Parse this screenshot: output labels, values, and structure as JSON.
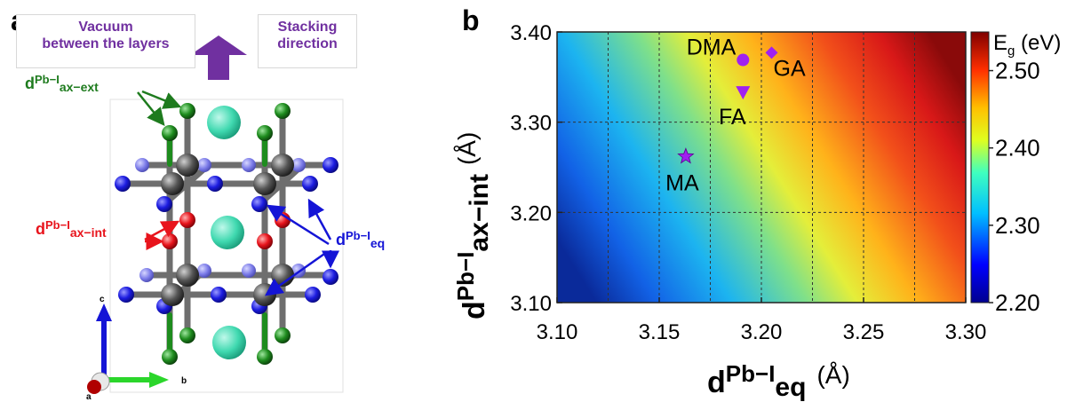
{
  "panel_a": {
    "label": "a",
    "note_vacuum": [
      "Vacuum",
      "between the layers"
    ],
    "note_stacking": [
      "Stacking",
      "direction"
    ],
    "label_ext": {
      "base": "d",
      "sub": "Pb−I",
      "subsub": "ax−ext",
      "color": "#1e7b1e"
    },
    "label_int": {
      "base": "d",
      "sub": "Pb−I",
      "subsub": "ax−int",
      "color": "#e8141c"
    },
    "label_eq": {
      "base": "d",
      "sub": "Pb−I",
      "subsub": "eq",
      "color": "#1414d6"
    },
    "axes": {
      "c": "c",
      "b": "b",
      "a": "a"
    },
    "colors": {
      "purple": "#7030a0",
      "green": "#1e7b1e",
      "red": "#e8141c",
      "blue": "#1414d6",
      "teal": "#40d9b0",
      "pb": "#404040"
    }
  },
  "chart_data": {
    "panel_label": "b",
    "type": "heatmap",
    "title": "",
    "xlabel": {
      "base": "d",
      "sub": "Pb−I",
      "subsub": "eq",
      "unit": "(Å)"
    },
    "ylabel": {
      "base": "d",
      "sub": "Pb−I",
      "subsub": "ax−int",
      "unit": "(Å)"
    },
    "xlim": [
      3.1,
      3.3
    ],
    "ylim": [
      3.1,
      3.4
    ],
    "xticks": [
      "3.10",
      "3.15",
      "3.20",
      "3.25",
      "3.30"
    ],
    "yticks": [
      "3.10",
      "3.20",
      "3.30",
      "3.40"
    ],
    "x_grid": [
      3.1,
      3.125,
      3.15,
      3.175,
      3.2,
      3.225,
      3.25,
      3.275,
      3.3
    ],
    "y_grid": [
      3.1,
      3.2,
      3.3,
      3.4
    ],
    "grid": true,
    "colorbar": {
      "label": "E",
      "label_sub": "g",
      "label_unit": " (eV)",
      "range": [
        2.2,
        2.55
      ],
      "ticks": [
        "2.20",
        "2.30",
        "2.40",
        "2.50"
      ],
      "colormap": "jet"
    },
    "points": [
      {
        "name": "MA",
        "x": 3.163,
        "y": 3.262,
        "marker": "star"
      },
      {
        "name": "FA",
        "x": 3.191,
        "y": 3.333,
        "marker": "triangle-down"
      },
      {
        "name": "DMA",
        "x": 3.191,
        "y": 3.369,
        "marker": "circle"
      },
      {
        "name": "GA",
        "x": 3.205,
        "y": 3.377,
        "marker": "diamond"
      }
    ],
    "marker_color": "#a020f0"
  }
}
